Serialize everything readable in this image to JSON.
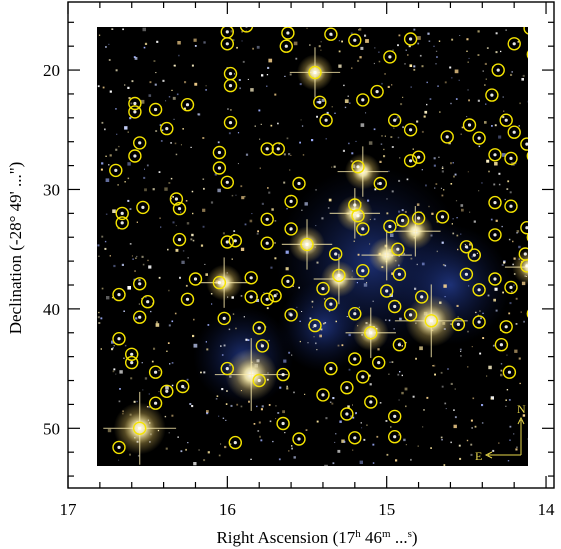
{
  "chart_data": {
    "type": "scatter",
    "image_style": "near-infrared false-colour star field (dark sky, yellow-white stars, blue diffuse emission) with yellow circle markers",
    "xlabel": "Right Ascension (17h 46m ...s)",
    "xlabel_parts": {
      "prefix": "Right Ascension (17",
      "h": "h",
      "mid": " 46",
      "m": "m",
      "dots": " ...",
      "s": "s",
      "suffix": ")"
    },
    "ylabel": "Declination (-28° 49' ...\")",
    "x_ticks": [
      "17",
      "16",
      "15",
      "14"
    ],
    "y_ticks": [
      "20",
      "30",
      "40",
      "50"
    ],
    "xlim": [
      17.0,
      13.95
    ],
    "ylim": [
      55.0,
      14.3
    ],
    "x_reversed": true,
    "y_increases_downward": true,
    "grid": false,
    "compass": {
      "north": "N",
      "east": "E"
    },
    "colors": {
      "circle": "#f5e400",
      "background": "#000000",
      "star": "#ffe9a0",
      "nebula": "#1a3a8c",
      "compass": "#e8d84a"
    },
    "bright_stars": [
      [
        15.45,
        20.2
      ],
      [
        15.5,
        34.6
      ],
      [
        15.2,
        32.0
      ],
      [
        15.0,
        35.5
      ],
      [
        14.72,
        41.0
      ],
      [
        15.85,
        45.5
      ],
      [
        16.55,
        50.0
      ],
      [
        16.02,
        37.8
      ],
      [
        14.1,
        36.5
      ],
      [
        15.15,
        28.5
      ],
      [
        15.1,
        42.0
      ],
      [
        14.82,
        33.5
      ],
      [
        15.3,
        37.5
      ]
    ],
    "markers": [
      [
        16.0,
        16.8
      ],
      [
        16.0,
        17.8
      ],
      [
        15.88,
        16.3
      ],
      [
        15.82,
        15.8
      ],
      [
        15.62,
        16.9
      ],
      [
        15.63,
        18.0
      ],
      [
        15.35,
        17.0
      ],
      [
        15.2,
        17.5
      ],
      [
        14.98,
        18.9
      ],
      [
        14.85,
        17.4
      ],
      [
        14.1,
        16.5
      ],
      [
        14.2,
        17.8
      ],
      [
        14.08,
        18.7
      ],
      [
        16.58,
        22.8
      ],
      [
        16.58,
        23.5
      ],
      [
        16.45,
        23.3
      ],
      [
        16.25,
        22.9
      ],
      [
        16.38,
        24.9
      ],
      [
        15.98,
        20.3
      ],
      [
        15.98,
        21.3
      ],
      [
        15.45,
        20.2
      ],
      [
        15.42,
        22.7
      ],
      [
        15.38,
        24.2
      ],
      [
        15.15,
        22.5
      ],
      [
        15.06,
        21.8
      ],
      [
        14.85,
        25.0
      ],
      [
        14.3,
        20.0
      ],
      [
        14.34,
        22.1
      ],
      [
        14.25,
        24.2
      ],
      [
        16.55,
        26.1
      ],
      [
        16.58,
        27.2
      ],
      [
        16.7,
        28.4
      ],
      [
        16.05,
        26.9
      ],
      [
        16.05,
        28.2
      ],
      [
        16.0,
        29.4
      ],
      [
        15.98,
        24.4
      ],
      [
        15.75,
        26.6
      ],
      [
        15.68,
        26.6
      ],
      [
        15.18,
        28.1
      ],
      [
        15.04,
        29.5
      ],
      [
        14.95,
        24.2
      ],
      [
        14.8,
        27.3
      ],
      [
        14.85,
        27.6
      ],
      [
        14.62,
        25.6
      ],
      [
        14.48,
        24.6
      ],
      [
        14.42,
        25.7
      ],
      [
        14.32,
        27.1
      ],
      [
        14.22,
        27.4
      ],
      [
        14.2,
        25.2
      ],
      [
        14.12,
        26.2
      ],
      [
        14.08,
        27.2
      ],
      [
        16.66,
        32.0
      ],
      [
        16.66,
        32.8
      ],
      [
        16.53,
        31.5
      ],
      [
        16.32,
        30.8
      ],
      [
        16.3,
        31.6
      ],
      [
        16.3,
        34.2
      ],
      [
        16.0,
        34.4
      ],
      [
        15.95,
        34.3
      ],
      [
        15.75,
        34.5
      ],
      [
        15.75,
        32.5
      ],
      [
        15.6,
        31.0
      ],
      [
        15.6,
        33.3
      ],
      [
        15.55,
        29.5
      ],
      [
        15.5,
        34.6
      ],
      [
        15.32,
        35.4
      ],
      [
        15.2,
        31.3
      ],
      [
        15.18,
        32.2
      ],
      [
        15.15,
        33.3
      ],
      [
        14.98,
        33.1
      ],
      [
        14.93,
        35.0
      ],
      [
        14.9,
        32.6
      ],
      [
        14.8,
        32.4
      ],
      [
        14.65,
        32.3
      ],
      [
        14.45,
        35.5
      ],
      [
        14.5,
        34.8
      ],
      [
        14.32,
        33.8
      ],
      [
        14.32,
        31.1
      ],
      [
        14.22,
        31.4
      ],
      [
        14.12,
        33.2
      ],
      [
        14.08,
        34.0
      ],
      [
        14.13,
        35.4
      ],
      [
        16.68,
        38.8
      ],
      [
        16.55,
        37.9
      ],
      [
        16.5,
        39.4
      ],
      [
        16.55,
        40.7
      ],
      [
        16.2,
        37.5
      ],
      [
        16.25,
        39.2
      ],
      [
        16.05,
        37.8
      ],
      [
        16.02,
        40.8
      ],
      [
        15.85,
        37.4
      ],
      [
        15.85,
        39.0
      ],
      [
        15.75,
        39.2
      ],
      [
        15.7,
        38.9
      ],
      [
        15.62,
        37.7
      ],
      [
        15.4,
        38.3
      ],
      [
        15.3,
        37.2
      ],
      [
        15.15,
        36.8
      ],
      [
        15.0,
        38.5
      ],
      [
        14.92,
        37.1
      ],
      [
        14.95,
        39.8
      ],
      [
        14.85,
        40.5
      ],
      [
        14.78,
        39.0
      ],
      [
        14.5,
        37.1
      ],
      [
        14.42,
        38.4
      ],
      [
        14.32,
        37.5
      ],
      [
        14.22,
        38.2
      ],
      [
        14.12,
        36.4
      ],
      [
        14.05,
        37.2
      ],
      [
        14.08,
        40.4
      ],
      [
        16.68,
        42.5
      ],
      [
        16.6,
        43.8
      ],
      [
        16.6,
        44.5
      ],
      [
        16.45,
        45.3
      ],
      [
        16.38,
        46.9
      ],
      [
        16.28,
        46.5
      ],
      [
        16.0,
        45.0
      ],
      [
        15.78,
        43.1
      ],
      [
        15.8,
        41.6
      ],
      [
        15.6,
        40.5
      ],
      [
        15.45,
        41.4
      ],
      [
        15.35,
        39.6
      ],
      [
        15.2,
        40.4
      ],
      [
        15.1,
        42.0
      ],
      [
        15.2,
        44.2
      ],
      [
        15.35,
        45.0
      ],
      [
        15.15,
        45.7
      ],
      [
        15.25,
        46.6
      ],
      [
        15.05,
        44.5
      ],
      [
        14.92,
        43.0
      ],
      [
        14.72,
        41.0
      ],
      [
        14.55,
        41.3
      ],
      [
        14.42,
        41.1
      ],
      [
        14.25,
        41.5
      ],
      [
        14.28,
        43.0
      ],
      [
        14.23,
        45.3
      ],
      [
        16.68,
        51.6
      ],
      [
        16.45,
        47.9
      ],
      [
        16.55,
        50.0
      ],
      [
        15.8,
        46.0
      ],
      [
        15.65,
        45.5
      ],
      [
        15.4,
        47.2
      ],
      [
        15.25,
        48.8
      ],
      [
        15.1,
        47.8
      ],
      [
        14.95,
        49.0
      ],
      [
        15.2,
        50.8
      ],
      [
        14.95,
        50.7
      ],
      [
        15.95,
        51.2
      ],
      [
        15.65,
        49.6
      ],
      [
        15.55,
        50.9
      ]
    ]
  }
}
